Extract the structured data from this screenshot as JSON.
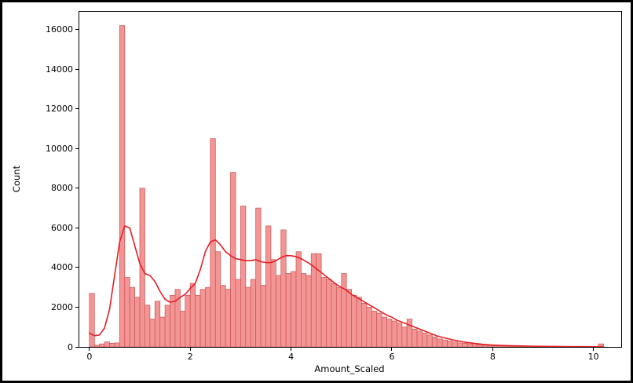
{
  "figure": {
    "background": "#ffffff",
    "border_color": "#000000"
  },
  "chart_data": {
    "type": "bar",
    "subtype": "histogram_with_kde",
    "title": "",
    "xlabel": "Amount_Scaled",
    "ylabel": "Count",
    "legend": null,
    "grid": false,
    "xlim": [
      -0.2,
      10.55
    ],
    "ylim": [
      0,
      16900
    ],
    "xticks": [
      0,
      2,
      4,
      6,
      8,
      10
    ],
    "yticks": [
      0,
      2000,
      4000,
      6000,
      8000,
      10000,
      12000,
      14000,
      16000
    ],
    "bar_fill": "#f49595",
    "bar_edge": "#cf5b5b",
    "kde_color": "#e42026",
    "bin_start": 0.0,
    "bin_width": 0.1,
    "values": [
      2700,
      80,
      150,
      250,
      180,
      200,
      16200,
      3500,
      3000,
      2500,
      8000,
      2100,
      1400,
      2300,
      1500,
      2100,
      2600,
      2900,
      1800,
      2600,
      3200,
      2600,
      2900,
      3000,
      10500,
      4800,
      3100,
      2900,
      8800,
      3400,
      7100,
      3000,
      3400,
      7000,
      3100,
      6100,
      4400,
      3600,
      5900,
      3700,
      3800,
      4800,
      3700,
      3600,
      4700,
      4700,
      3500,
      3400,
      3200,
      3000,
      3700,
      2900,
      2600,
      2500,
      2200,
      2000,
      1800,
      1700,
      1500,
      1400,
      1300,
      1200,
      1000,
      1400,
      900,
      800,
      700,
      600,
      500,
      400,
      350,
      300,
      250,
      200,
      180,
      150,
      120,
      100,
      80,
      70,
      60,
      50,
      40,
      35,
      30,
      25,
      20,
      18,
      15,
      12,
      10,
      8,
      7,
      6,
      5,
      5,
      4,
      4,
      3,
      3,
      2,
      150
    ],
    "kde_x": [
      0.0,
      0.1,
      0.2,
      0.3,
      0.4,
      0.5,
      0.6,
      0.7,
      0.8,
      0.9,
      1.0,
      1.1,
      1.2,
      1.3,
      1.4,
      1.5,
      1.6,
      1.7,
      1.8,
      1.9,
      2.0,
      2.1,
      2.2,
      2.3,
      2.4,
      2.5,
      2.6,
      2.7,
      2.8,
      2.9,
      3.0,
      3.1,
      3.2,
      3.3,
      3.4,
      3.5,
      3.6,
      3.7,
      3.8,
      3.9,
      4.0,
      4.1,
      4.2,
      4.3,
      4.4,
      4.5,
      4.6,
      4.7,
      4.8,
      4.9,
      5.0,
      5.1,
      5.2,
      5.3,
      5.4,
      5.5,
      5.6,
      5.7,
      5.8,
      5.9,
      6.0,
      6.1,
      6.2,
      6.3,
      6.4,
      6.5,
      6.6,
      6.7,
      6.8,
      6.9,
      7.0,
      7.1,
      7.2,
      7.3,
      7.4,
      7.5,
      7.6,
      7.7,
      7.8,
      7.9,
      8.0,
      8.2,
      8.4,
      8.6,
      8.8,
      9.0,
      9.2,
      9.4,
      9.6,
      9.8,
      10.0,
      10.2
    ],
    "kde_y": [
      700,
      560,
      600,
      950,
      1900,
      3600,
      5300,
      6100,
      6000,
      5100,
      4200,
      3700,
      3600,
      3300,
      2800,
      2400,
      2250,
      2300,
      2500,
      2650,
      2950,
      3200,
      3900,
      4800,
      5300,
      5400,
      5150,
      4800,
      4600,
      4450,
      4400,
      4350,
      4350,
      4400,
      4300,
      4250,
      4250,
      4350,
      4500,
      4600,
      4600,
      4550,
      4450,
      4300,
      4150,
      3950,
      3750,
      3550,
      3350,
      3150,
      3000,
      2850,
      2650,
      2500,
      2350,
      2200,
      2050,
      1900,
      1750,
      1600,
      1500,
      1350,
      1250,
      1150,
      1050,
      950,
      850,
      750,
      650,
      550,
      480,
      420,
      360,
      310,
      260,
      220,
      190,
      160,
      130,
      110,
      90,
      70,
      55,
      45,
      35,
      28,
      22,
      18,
      14,
      12,
      10,
      8
    ]
  }
}
